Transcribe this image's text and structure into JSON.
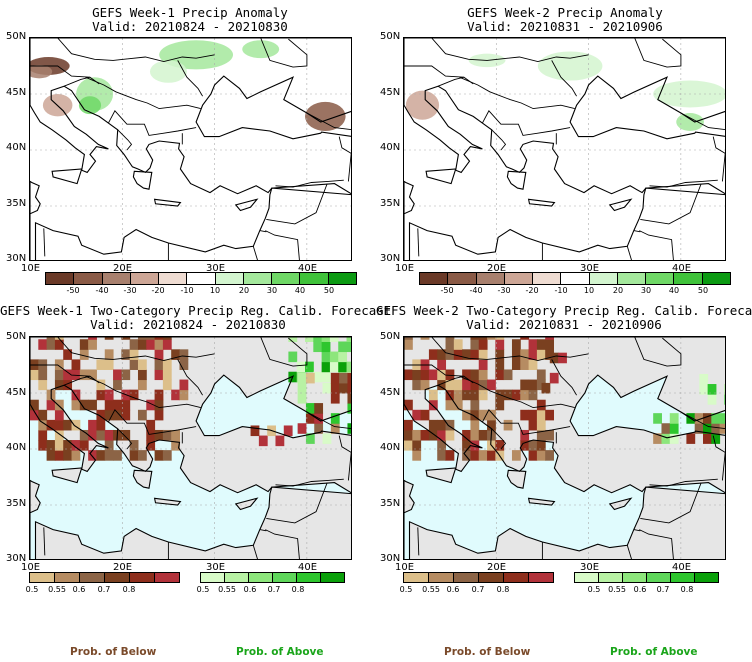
{
  "panels": [
    {
      "title": "GEFS Week-1 Precip Anomaly",
      "valid": "Valid: 20210824 - 20210830"
    },
    {
      "title": "GEFS Week-2 Precip Anomaly",
      "valid": "Valid: 20210831 - 20210906"
    },
    {
      "title": "GEFS Week-1 Two-Category Precip Reg. Calib. Forecast",
      "valid": "Valid: 20210824 - 20210830"
    },
    {
      "title": "GEFS Week-2 Two-Category Precip Reg. Calib. Forecast",
      "valid": "Valid: 20210831 - 20210906"
    }
  ],
  "lat_labels": [
    "50N",
    "45N",
    "40N",
    "35N",
    "30N"
  ],
  "lon_labels": [
    "10E",
    "20E",
    "30E",
    "40E"
  ],
  "anomaly_colorbar": {
    "ticks": [
      "-50",
      "-40",
      "-30",
      "-20",
      "-10",
      "10",
      "20",
      "30",
      "40",
      "50"
    ],
    "colors": [
      "#6b3a28",
      "#8a5a46",
      "#a8806e",
      "#cda696",
      "#efdcd2",
      "#ffffff",
      "#d3f5cf",
      "#a4e89c",
      "#6fd866",
      "#3fc23a",
      "#0b9a12"
    ]
  },
  "prob_below_colorbar": {
    "ticks": [
      "0.5",
      "0.55",
      "0.6",
      "0.7",
      "0.8"
    ],
    "colors": [
      "#dcbf8a",
      "#b68c62",
      "#8c6446",
      "#7a4020",
      "#8e2e1c",
      "#b2323a"
    ]
  },
  "prob_above_colorbar": {
    "ticks": [
      "0.5",
      "0.55",
      "0.6",
      "0.7",
      "0.8"
    ],
    "colors": [
      "#d8fbc8",
      "#b8f2a4",
      "#8de67c",
      "#5ed65a",
      "#2ec62e",
      "#0aa00a"
    ]
  },
  "footer": {
    "below_label": "Prob. of Below",
    "above_label": "Prob. of Above"
  },
  "colors": {
    "ocean_prob": "#e0fbfd",
    "land_prob": "#e6e6e6",
    "below_text": "#7a4a2a",
    "above_text": "#1aa51a"
  }
}
